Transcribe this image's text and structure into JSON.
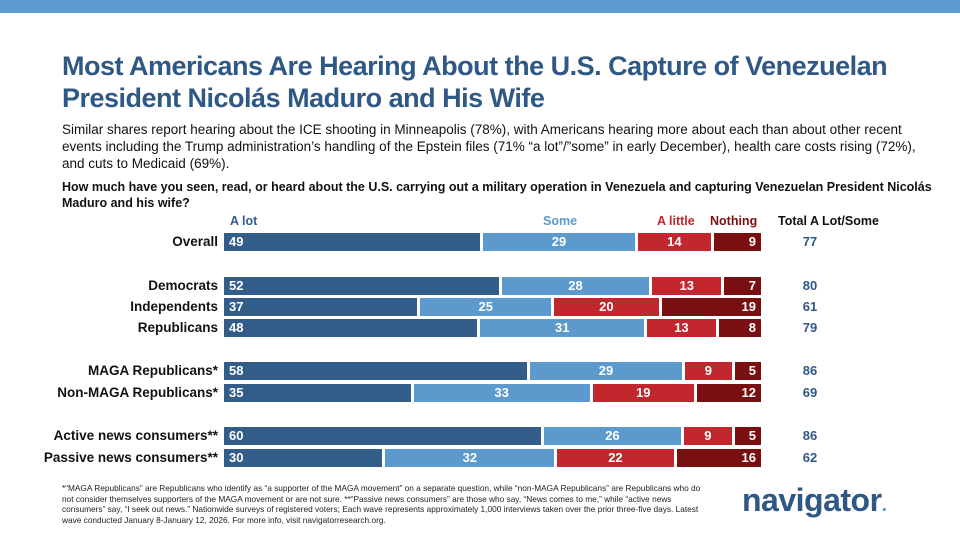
{
  "title": "Most Americans Are Hearing About the U.S. Capture of Venezuelan President Nicolás Maduro and His Wife",
  "subtitle": "Similar shares report hearing about the ICE shooting in Minneapolis (78%), with Americans hearing more about each than about other recent events including the Trump administration’s handling of the Epstein files (71% “a lot”/”some” in early December), health care costs rising (72%), and cuts to Medicaid (69%).",
  "question": "How much have you seen, read, or heard about the U.S. carrying out a military operation in Venezuela and capturing Venezuelan President Nicolás Maduro and his wife?",
  "footnote": "*“MAGA Republicans” are Republicans who identify as “a supporter of the MAGA movement” on a separate question, while “non-MAGA Republicans” are Republicans who do not consider themselves supporters of the MAGA movement or are not sure. **“Passive news consumers” are those who say, “News comes to me,” while “active news consumers” say, “I seek out news.” Nationwide surveys of registered voters; Each wave represents approximately 1,000 interviews taken over the prior three-five days. Latest wave conducted January 8-January 12, 2026. For more info, visit navigatorresearch.org.",
  "logo": "navigator",
  "chart_data": {
    "type": "bar",
    "orientation": "horizontal-stacked",
    "total_header": "Total A Lot/Some",
    "series": [
      {
        "name": "A lot",
        "color": "#335d89"
      },
      {
        "name": "Some",
        "color": "#5c9acd"
      },
      {
        "name": "A little",
        "color": "#c1272d"
      },
      {
        "name": "Nothing",
        "color": "#7a0f12"
      }
    ],
    "rows": [
      {
        "label": "Overall",
        "values": [
          49,
          29,
          14,
          9
        ],
        "total": "77"
      },
      {
        "label": "Democrats",
        "values": [
          52,
          28,
          13,
          7
        ],
        "total": "80"
      },
      {
        "label": "Independents",
        "values": [
          37,
          25,
          20,
          19
        ],
        "total": "61"
      },
      {
        "label": "Republicans",
        "values": [
          48,
          31,
          13,
          8
        ],
        "total": "79"
      },
      {
        "label": "MAGA Republicans*",
        "values": [
          58,
          29,
          9,
          5
        ],
        "total": "86"
      },
      {
        "label": "Non-MAGA Republicans*",
        "values": [
          35,
          33,
          19,
          12
        ],
        "total": "69"
      },
      {
        "label": "Active news consumers**",
        "values": [
          60,
          26,
          9,
          5
        ],
        "total": "86"
      },
      {
        "label": "Passive news consumers**",
        "values": [
          30,
          32,
          22,
          16
        ],
        "total": "62"
      }
    ]
  }
}
